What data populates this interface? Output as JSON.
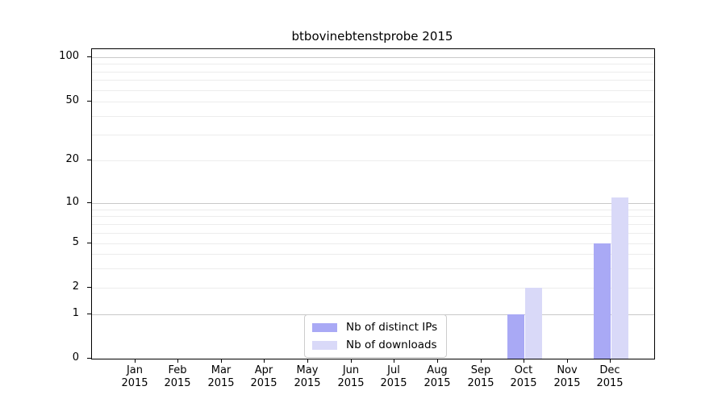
{
  "chart_data": {
    "type": "bar",
    "title": "btbovinebtenstprobe 2015",
    "categories": [
      "Jan",
      "Feb",
      "Mar",
      "Apr",
      "May",
      "Jun",
      "Jul",
      "Aug",
      "Sep",
      "Oct",
      "Nov",
      "Dec"
    ],
    "x_year": "2015",
    "series": [
      {
        "name": "Nb of distinct IPs",
        "color": "#a9a9f5",
        "values": [
          0,
          0,
          0,
          0,
          0,
          0,
          0,
          0,
          0,
          1,
          0,
          5
        ]
      },
      {
        "name": "Nb of downloads",
        "color": "#d9d9f8",
        "values": [
          0,
          0,
          0,
          0,
          0,
          0,
          0,
          0,
          0,
          2,
          0,
          11
        ]
      }
    ],
    "yscale": "symlog",
    "ylim": [
      0,
      120
    ],
    "y_tick_labels": [
      "100",
      "50",
      "20",
      "10",
      "5",
      "2",
      "1",
      "0"
    ],
    "y_tick_values": [
      100,
      50,
      20,
      10,
      5,
      2,
      1,
      0
    ],
    "major_gridlines": [
      1,
      10,
      100
    ],
    "minor_gridlines": [
      2,
      3,
      4,
      5,
      6,
      7,
      8,
      9,
      20,
      30,
      40,
      50,
      60,
      70,
      80,
      90
    ],
    "grid": true,
    "legend_position": "lower center",
    "xlabel": "",
    "ylabel": ""
  },
  "colors": {
    "background": "#ffffff",
    "axis": "#000000",
    "text": "#000000",
    "major_grid": "#c9c9c9",
    "minor_grid": "#ececec",
    "legend_border": "#cccccc",
    "bar_distinct_ips": "#a9a9f5",
    "bar_downloads": "#d9d9f8"
  }
}
